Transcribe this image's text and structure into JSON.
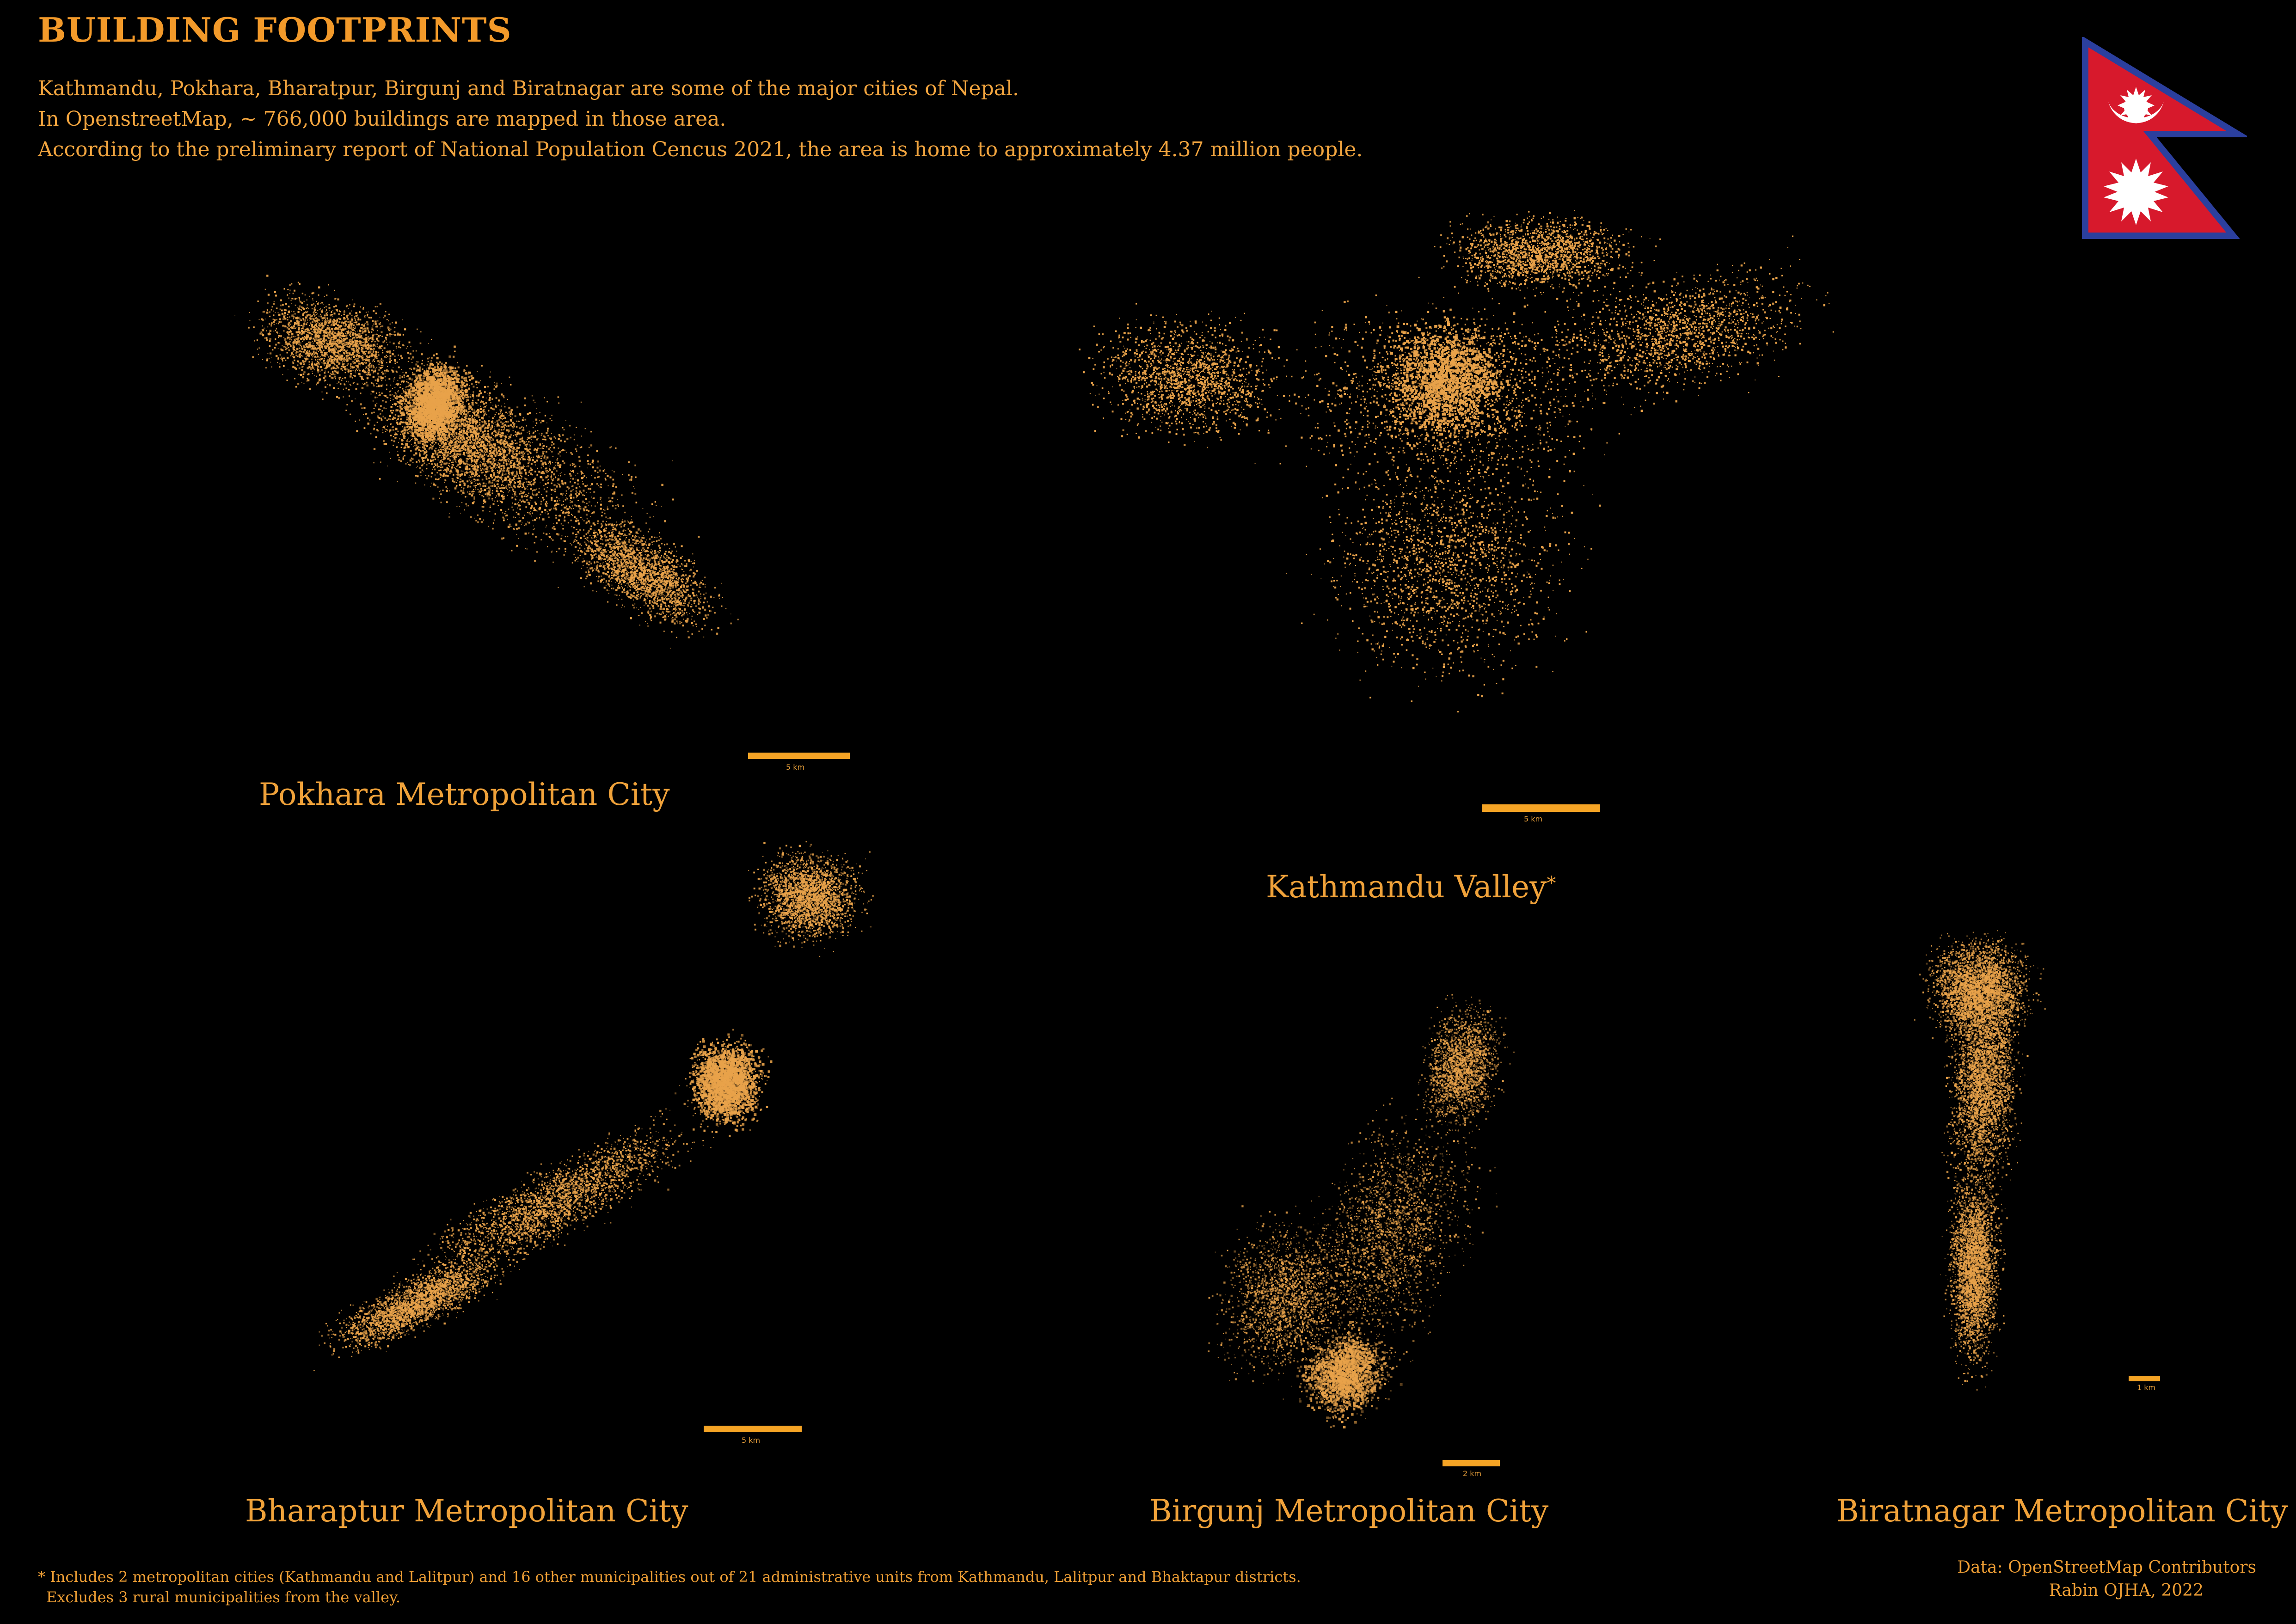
{
  "header": {
    "title": "BUILDING FOOTPRINTS",
    "intro": [
      "Kathmandu, Pokhara, Bharatpur, Birgunj and Biratnagar are some of the major cities of Nepal.",
      "In OpenstreetMap, ~ 766,000 buildings are mapped in those area.",
      "According to the preliminary report of National Population Cencus 2021, the area is home to approximately 4.37 million people."
    ]
  },
  "flag": {
    "icon": "nepal-flag-icon",
    "field_color": "#d7192c",
    "border_color": "#2b3f9e",
    "emblem_color": "#ffffff"
  },
  "maps": {
    "pokhara": {
      "label": "Pokhara Metropolitan City",
      "scale": "5 km"
    },
    "kathmandu": {
      "label": "Kathmandu Valley",
      "label_suffix": "*",
      "scale": "5  km"
    },
    "bharatpur": {
      "label": "Bharaptur Metropolitan City",
      "scale": "5 km"
    },
    "birgunj": {
      "label": "Birgunj Metropolitan City",
      "scale": "2 km"
    },
    "biratnagar": {
      "label": "Biratnagar Metropolitan City",
      "scale": "1 km"
    }
  },
  "footer": {
    "note_line1": "* Includes 2 metropolitan cities (Kathmandu and Lalitpur) and 16 other municipalities out of 21 administrative units from Kathmandu, Lalitpur and Bhaktapur districts.",
    "note_line2": "Excludes 3 rural municipalities from the valley.",
    "data_credit": "Data: OpenStreetMap Contributors",
    "author_credit": "Rabin OJHA, 2022"
  },
  "style": {
    "accent": "#f0a23a",
    "background": "#000000",
    "footprint_color": "#e8a24a"
  }
}
